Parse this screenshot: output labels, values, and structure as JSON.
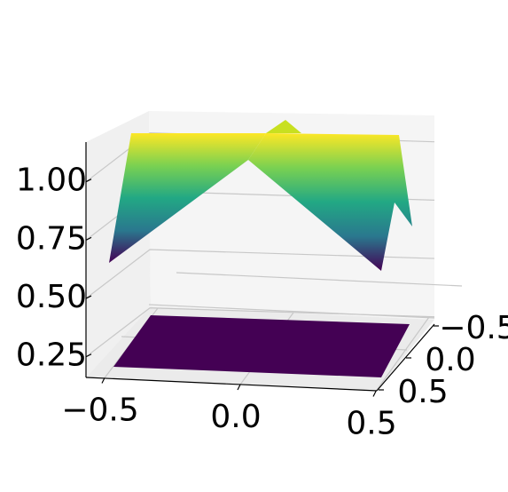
{
  "chart_data": {
    "type": "surface3d",
    "xticks": [
      {
        "value": -0.5,
        "label": "−0.5"
      },
      {
        "value": 0,
        "label": "0.0"
      },
      0.5
    ],
    "yticks": [
      {
        "value": -0.5,
        "label": "−0.5"
      },
      {
        "value": 0,
        "label": "0.0"
      },
      0.5
    ],
    "zticks": [
      0.25,
      {
        "value": 0.5,
        "label": "0.50"
      },
      0.75,
      {
        "value": 1,
        "label": "1.00"
      }
    ],
    "zlim": [
      0.15,
      1.17
    ],
    "grid": true
  }
}
